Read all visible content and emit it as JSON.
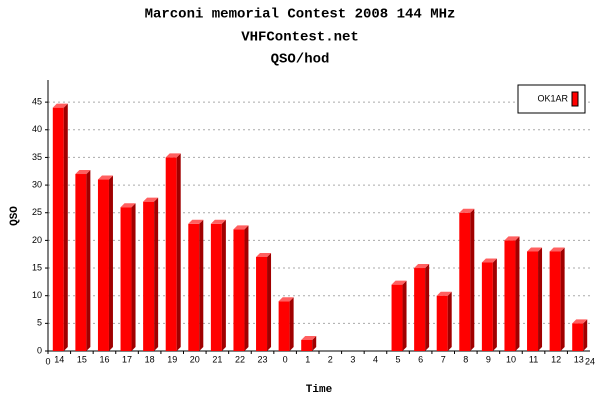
{
  "chart_data": {
    "type": "bar",
    "title": "Marconi memorial Contest 2008 144 MHz",
    "subtitle": "VHFContest.net",
    "subtitle2": "QSO/hod",
    "x_label": "Time",
    "y_label": "QSO",
    "categories": [
      "14",
      "15",
      "16",
      "17",
      "18",
      "19",
      "20",
      "21",
      "22",
      "23",
      "0",
      "1",
      "2",
      "3",
      "4",
      "5",
      "6",
      "7",
      "8",
      "9",
      "10",
      "11",
      "12",
      "13"
    ],
    "series": [
      {
        "name": "OK1AR",
        "color": "#ff0000",
        "values": [
          44,
          32,
          31,
          26,
          27,
          35,
          23,
          23,
          22,
          17,
          9,
          2,
          0,
          0,
          0,
          12,
          15,
          10,
          25,
          16,
          20,
          18,
          18,
          5
        ]
      }
    ],
    "xticks": [
      0,
      24
    ],
    "ylim": [
      0,
      49
    ],
    "yticks": [
      0,
      5,
      10,
      15,
      20,
      25,
      30,
      35,
      40,
      45
    ],
    "grid": true,
    "legend": "top-right"
  }
}
